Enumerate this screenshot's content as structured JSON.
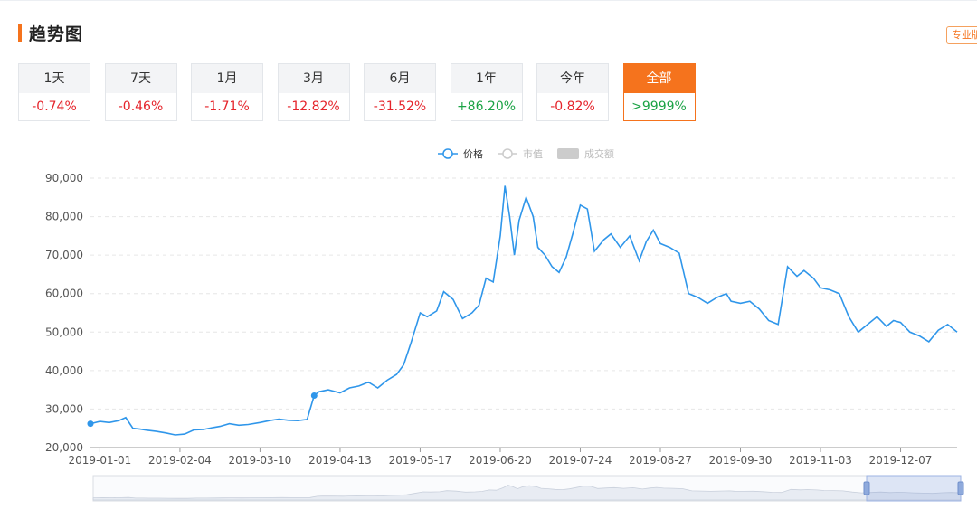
{
  "header": {
    "title": "趋势图",
    "pro_button": "专业版"
  },
  "periods": [
    {
      "label": "1天",
      "change": "-0.74%",
      "direction": "neg"
    },
    {
      "label": "7天",
      "change": "-0.46%",
      "direction": "neg"
    },
    {
      "label": "1月",
      "change": "-1.71%",
      "direction": "neg"
    },
    {
      "label": "3月",
      "change": "-12.82%",
      "direction": "neg"
    },
    {
      "label": "6月",
      "change": "-31.52%",
      "direction": "neg"
    },
    {
      "label": "1年",
      "change": "+86.20%",
      "direction": "pos"
    },
    {
      "label": "今年",
      "change": "-0.82%",
      "direction": "neg"
    },
    {
      "label": "全部",
      "change": ">9999%",
      "direction": "pos",
      "active": true
    }
  ],
  "legend": [
    {
      "name": "价格",
      "color": "#2f96ea",
      "active": true
    },
    {
      "name": "市值",
      "color": "#cccccc",
      "active": false
    },
    {
      "name": "成交额",
      "color": "#cccccc",
      "active": false
    }
  ],
  "colors": {
    "accent": "#f5731d",
    "line": "#2f96ea",
    "negative": "#e5242b",
    "positive": "#1ba345"
  },
  "chart_data": {
    "type": "line",
    "title": "",
    "xlabel": "",
    "ylabel": "",
    "ylim": [
      20000,
      90000
    ],
    "yticks": [
      "20,000",
      "30,000",
      "40,000",
      "50,000",
      "60,000",
      "70,000",
      "80,000",
      "90,000"
    ],
    "xticks": [
      "2019-01-01",
      "2019-02-04",
      "2019-03-10",
      "2019-04-13",
      "2019-05-17",
      "2019-06-20",
      "2019-07-24",
      "2019-08-27",
      "2019-09-30",
      "2019-11-03",
      "2019-12-07"
    ],
    "x_range": [
      "2018-12-28",
      "2019-12-31"
    ],
    "grid": true,
    "legend_position": "top-center",
    "series": [
      {
        "name": "价格",
        "x": [
          "2018-12-28",
          "2019-01-01",
          "2019-01-05",
          "2019-01-09",
          "2019-01-12",
          "2019-01-15",
          "2019-01-18",
          "2019-01-21",
          "2019-01-25",
          "2019-01-29",
          "2019-02-02",
          "2019-02-06",
          "2019-02-10",
          "2019-02-14",
          "2019-02-18",
          "2019-02-21",
          "2019-02-25",
          "2019-03-01",
          "2019-03-05",
          "2019-03-10",
          "2019-03-14",
          "2019-03-18",
          "2019-03-22",
          "2019-03-26",
          "2019-03-30",
          "2019-04-02",
          "2019-04-04",
          "2019-04-08",
          "2019-04-13",
          "2019-04-17",
          "2019-04-21",
          "2019-04-25",
          "2019-04-29",
          "2019-05-03",
          "2019-05-07",
          "2019-05-10",
          "2019-05-13",
          "2019-05-17",
          "2019-05-20",
          "2019-05-24",
          "2019-05-27",
          "2019-05-31",
          "2019-06-04",
          "2019-06-08",
          "2019-06-11",
          "2019-06-14",
          "2019-06-17",
          "2019-06-20",
          "2019-06-22",
          "2019-06-24",
          "2019-06-26",
          "2019-06-28",
          "2019-07-01",
          "2019-07-04",
          "2019-07-06",
          "2019-07-09",
          "2019-07-12",
          "2019-07-15",
          "2019-07-18",
          "2019-07-21",
          "2019-07-24",
          "2019-07-27",
          "2019-07-30",
          "2019-08-03",
          "2019-08-06",
          "2019-08-10",
          "2019-08-14",
          "2019-08-18",
          "2019-08-21",
          "2019-08-24",
          "2019-08-27",
          "2019-08-31",
          "2019-09-04",
          "2019-09-08",
          "2019-09-12",
          "2019-09-16",
          "2019-09-20",
          "2019-09-24",
          "2019-09-26",
          "2019-09-30",
          "2019-10-04",
          "2019-10-08",
          "2019-10-12",
          "2019-10-16",
          "2019-10-20",
          "2019-10-24",
          "2019-10-27",
          "2019-10-31",
          "2019-11-03",
          "2019-11-07",
          "2019-11-11",
          "2019-11-15",
          "2019-11-19",
          "2019-11-23",
          "2019-11-27",
          "2019-12-01",
          "2019-12-04",
          "2019-12-07",
          "2019-12-11",
          "2019-12-15",
          "2019-12-19",
          "2019-12-23",
          "2019-12-27",
          "2019-12-31"
        ],
        "y": [
          26200,
          26800,
          26500,
          27000,
          27800,
          25000,
          24800,
          24500,
          24200,
          23800,
          23300,
          23500,
          24600,
          24700,
          25200,
          25500,
          26200,
          25800,
          26000,
          26500,
          27000,
          27400,
          27100,
          27000,
          27300,
          33500,
          34500,
          35000,
          34200,
          35500,
          36000,
          37000,
          35500,
          37500,
          39000,
          41500,
          47000,
          55000,
          54000,
          55500,
          60500,
          58500,
          53500,
          55000,
          57000,
          64000,
          63000,
          75000,
          88000,
          80000,
          70000,
          79000,
          85000,
          80000,
          72000,
          70000,
          67000,
          65500,
          69500,
          76000,
          83000,
          82000,
          71000,
          74000,
          75500,
          72000,
          75000,
          68500,
          73500,
          76500,
          73000,
          72000,
          70500,
          60000,
          59000,
          57500,
          59000,
          60000,
          58000,
          57500,
          58000,
          56000,
          53000,
          52000,
          67000,
          64500,
          66000,
          64000,
          61500,
          61000,
          60000,
          54000,
          50000,
          52000,
          54000,
          51500,
          53000,
          52500,
          50000,
          49000,
          47500,
          50500,
          52000,
          50000
        ]
      }
    ]
  }
}
